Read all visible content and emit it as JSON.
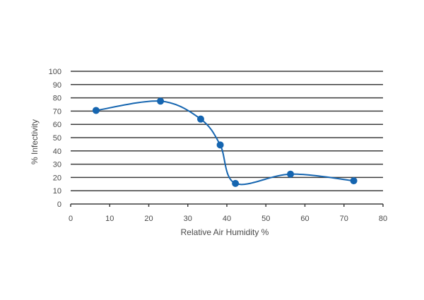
{
  "chart_data": {
    "type": "line",
    "xlabel": "Relative Air Humidity %",
    "ylabel": "% Infectivity",
    "xlim": [
      0,
      80
    ],
    "ylim": [
      0,
      100
    ],
    "xticks": [
      "0",
      "10",
      "20",
      "30",
      "40",
      "50",
      "60",
      "70",
      "80"
    ],
    "yticks": [
      "0",
      "10",
      "20",
      "30",
      "40",
      "50",
      "60",
      "70",
      "80",
      "90",
      "100"
    ],
    "grid": "horizontal",
    "series": [
      {
        "color": "#1565b0",
        "smooth": true,
        "points": [
          {
            "x": 6.5,
            "y": 70.5
          },
          {
            "x": 23,
            "y": 77.5
          },
          {
            "x": 33.3,
            "y": 64
          },
          {
            "x": 38.3,
            "y": 44.5
          },
          {
            "x": 42.2,
            "y": 15.5
          },
          {
            "x": 56.3,
            "y": 22.5
          },
          {
            "x": 72.5,
            "y": 17.5
          }
        ]
      }
    ]
  }
}
